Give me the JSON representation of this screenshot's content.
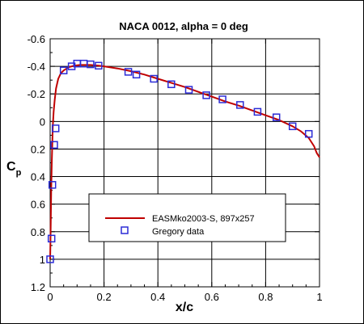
{
  "chart_data": {
    "type": "line",
    "title": "NACA 0012, alpha = 0 deg",
    "xlabel": "x/c",
    "ylabel_main": "C",
    "ylabel_sub": "p",
    "xlim": [
      0,
      1
    ],
    "ylim": [
      -0.6,
      1.2
    ],
    "y_inverted": true,
    "grid": true,
    "legend_position": "lower-center",
    "x_ticks": [
      0,
      0.2,
      0.4,
      0.6,
      0.8,
      1
    ],
    "x_tick_labels": [
      "0",
      "0.2",
      "0.4",
      "0.6",
      "0.8",
      "1"
    ],
    "y_ticks": [
      -0.6,
      -0.4,
      -0.2,
      0,
      0.2,
      0.4,
      0.6,
      0.8,
      1,
      1.2
    ],
    "y_tick_labels": [
      "-0.6",
      "-0.4",
      "-0.2",
      "0",
      "0.2",
      "0.4",
      "0.6",
      "0.8",
      "1",
      "1.2"
    ],
    "series": [
      {
        "name": "EASMko2003-S, 897x257",
        "kind": "line",
        "color": "#c00000",
        "x": [
          0,
          0.001,
          0.002,
          0.004,
          0.006,
          0.008,
          0.01,
          0.013,
          0.017,
          0.022,
          0.03,
          0.04,
          0.05,
          0.07,
          0.09,
          0.11,
          0.13,
          0.15,
          0.18,
          0.2,
          0.25,
          0.3,
          0.35,
          0.4,
          0.45,
          0.5,
          0.55,
          0.6,
          0.65,
          0.7,
          0.75,
          0.8,
          0.85,
          0.9,
          0.93,
          0.96,
          0.98,
          0.99,
          1
        ],
        "y": [
          1.0,
          0.9,
          0.75,
          0.5,
          0.3,
          0.15,
          0.03,
          -0.07,
          -0.16,
          -0.24,
          -0.31,
          -0.35,
          -0.37,
          -0.395,
          -0.405,
          -0.41,
          -0.41,
          -0.41,
          -0.405,
          -0.4,
          -0.385,
          -0.365,
          -0.34,
          -0.31,
          -0.28,
          -0.25,
          -0.215,
          -0.18,
          -0.145,
          -0.115,
          -0.08,
          -0.045,
          -0.01,
          0.035,
          0.07,
          0.12,
          0.18,
          0.23,
          0.26
        ]
      },
      {
        "name": "Gregory data",
        "kind": "markers",
        "color": "#2b2bd6",
        "x": [
          0.0,
          0.005,
          0.008,
          0.015,
          0.02,
          0.05,
          0.08,
          0.1,
          0.125,
          0.15,
          0.18,
          0.29,
          0.32,
          0.385,
          0.45,
          0.515,
          0.58,
          0.64,
          0.705,
          0.77,
          0.84,
          0.9,
          0.96
        ],
        "y": [
          1.0,
          0.85,
          0.46,
          0.17,
          0.05,
          -0.37,
          -0.4,
          -0.42,
          -0.42,
          -0.415,
          -0.405,
          -0.36,
          -0.34,
          -0.31,
          -0.27,
          -0.23,
          -0.19,
          -0.16,
          -0.12,
          -0.07,
          -0.03,
          0.035,
          0.09
        ]
      }
    ]
  }
}
